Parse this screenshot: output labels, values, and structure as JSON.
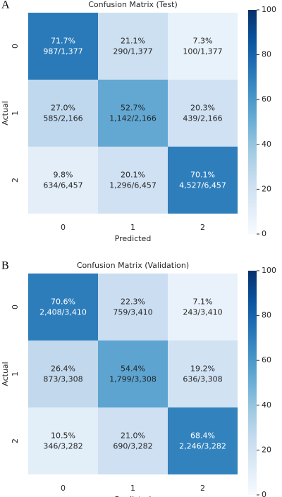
{
  "chart_data": [
    {
      "type": "heatmap",
      "panel_label": "A",
      "title": "Confusion Matrix (Test)",
      "xlabel": "Predicted",
      "ylabel": "Actual",
      "x_categories": [
        "0",
        "1",
        "2"
      ],
      "y_categories": [
        "0",
        "1",
        "2"
      ],
      "values": [
        [
          71.7,
          21.1,
          7.3
        ],
        [
          27.0,
          52.7,
          20.3
        ],
        [
          9.8,
          20.1,
          70.1
        ]
      ],
      "value_labels": [
        [
          "71.7%",
          "21.1%",
          "7.3%"
        ],
        [
          "27.0%",
          "52.7%",
          "20.3%"
        ],
        [
          "9.8%",
          "20.1%",
          "70.1%"
        ]
      ],
      "counts": [
        [
          "987/1,377",
          "290/1,377",
          "100/1,377"
        ],
        [
          "585/2,166",
          "1,142/2,166",
          "439/2,166"
        ],
        [
          "634/6,457",
          "1,296/6,457",
          "4,527/6,457"
        ]
      ],
      "colormap": "Blues",
      "clim": [
        0,
        100
      ],
      "cticks": [
        0,
        20,
        40,
        60,
        80,
        100
      ]
    },
    {
      "type": "heatmap",
      "panel_label": "B",
      "title": "Confusion Matrix (Validation)",
      "xlabel": "Predicted",
      "ylabel": "Actual",
      "x_categories": [
        "0",
        "1",
        "2"
      ],
      "y_categories": [
        "0",
        "1",
        "2"
      ],
      "values": [
        [
          70.6,
          22.3,
          7.1
        ],
        [
          26.4,
          54.4,
          19.2
        ],
        [
          10.5,
          21.0,
          68.4
        ]
      ],
      "value_labels": [
        [
          "70.6%",
          "22.3%",
          "7.1%"
        ],
        [
          "26.4%",
          "54.4%",
          "19.2%"
        ],
        [
          "10.5%",
          "21.0%",
          "68.4%"
        ]
      ],
      "counts": [
        [
          "2,408/3,410",
          "759/3,410",
          "243/3,410"
        ],
        [
          "873/3,308",
          "1,799/3,308",
          "636/3,308"
        ],
        [
          "346/3,282",
          "690/3,282",
          "2,246/3,282"
        ]
      ],
      "colormap": "Blues",
      "clim": [
        0,
        100
      ],
      "cticks": [
        0,
        20,
        40,
        60,
        80,
        100
      ]
    }
  ]
}
